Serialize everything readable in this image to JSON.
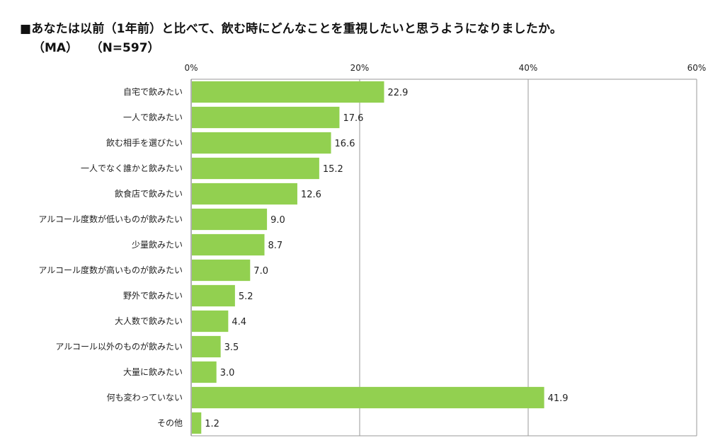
{
  "title": "■あなたは以前（1年前）と比べて、飲む時にどんなことを重視したいと思うようになりましたか。",
  "subtitle": {
    "type": "（MA）",
    "n": "（N=597）"
  },
  "colors": {
    "bar": "#92d050",
    "grid": "#9a9a9a",
    "axis": "#666666"
  },
  "chart_data": {
    "type": "bar",
    "orientation": "horizontal",
    "categories": [
      "自宅で飲みたい",
      "一人で飲みたい",
      "飲む相手を選びたい",
      "一人でなく誰かと飲みたい",
      "飲食店で飲みたい",
      "アルコール度数が低いものが飲みたい",
      "少量飲みたい",
      "アルコール度数が高いものが飲みたい",
      "野外で飲みたい",
      "大人数で飲みたい",
      "アルコール以外のものが飲みたい",
      "大量に飲みたい",
      "何も変わっていない",
      "その他"
    ],
    "values": [
      22.9,
      17.6,
      16.6,
      15.2,
      12.6,
      9.0,
      8.7,
      7.0,
      5.2,
      4.4,
      3.5,
      3.0,
      41.9,
      1.2
    ],
    "value_labels": [
      "22.9",
      "17.6",
      "16.6",
      "15.2",
      "12.6",
      "9.0",
      "8.7",
      "7.0",
      "5.2",
      "4.4",
      "3.5",
      "3.0",
      "41.9",
      "1.2"
    ],
    "xlim": [
      0,
      60
    ],
    "ticks": [
      0,
      20,
      40,
      60
    ],
    "tick_labels": [
      "0%",
      "20%",
      "40%",
      "60%"
    ],
    "grid": true
  }
}
